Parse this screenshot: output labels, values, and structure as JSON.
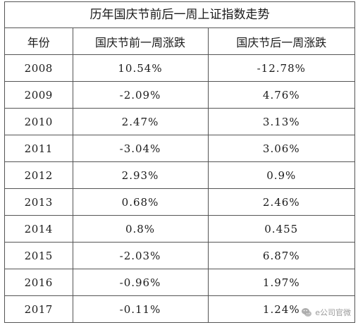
{
  "title": "历年国庆节前后一周上证指数走势",
  "headers": [
    "年份",
    "国庆节前一周涨跌",
    "国庆节后一周涨跌"
  ],
  "rows": [
    {
      "year": "2008",
      "before": "10.54%",
      "after": "-12.78%"
    },
    {
      "year": "2009",
      "before": "-2.09%",
      "after": "4.76%"
    },
    {
      "year": "2010",
      "before": "2.47%",
      "after": "3.13%"
    },
    {
      "year": "2011",
      "before": "-3.04%",
      "after": "3.06%"
    },
    {
      "year": "2012",
      "before": "2.93%",
      "after": "0.9%"
    },
    {
      "year": "2013",
      "before": "0.68%",
      "after": "2.46%"
    },
    {
      "year": "2014",
      "before": "0.8%",
      "after": "0.455"
    },
    {
      "year": "2015",
      "before": "-2.03%",
      "after": "6.87%"
    },
    {
      "year": "2016",
      "before": "-0.96%",
      "after": "1.97%"
    },
    {
      "year": "2017",
      "before": "-0.11%",
      "after": "1.24%"
    }
  ],
  "watermark": {
    "text": "e公司官微",
    "icon": "wechat-icon"
  }
}
